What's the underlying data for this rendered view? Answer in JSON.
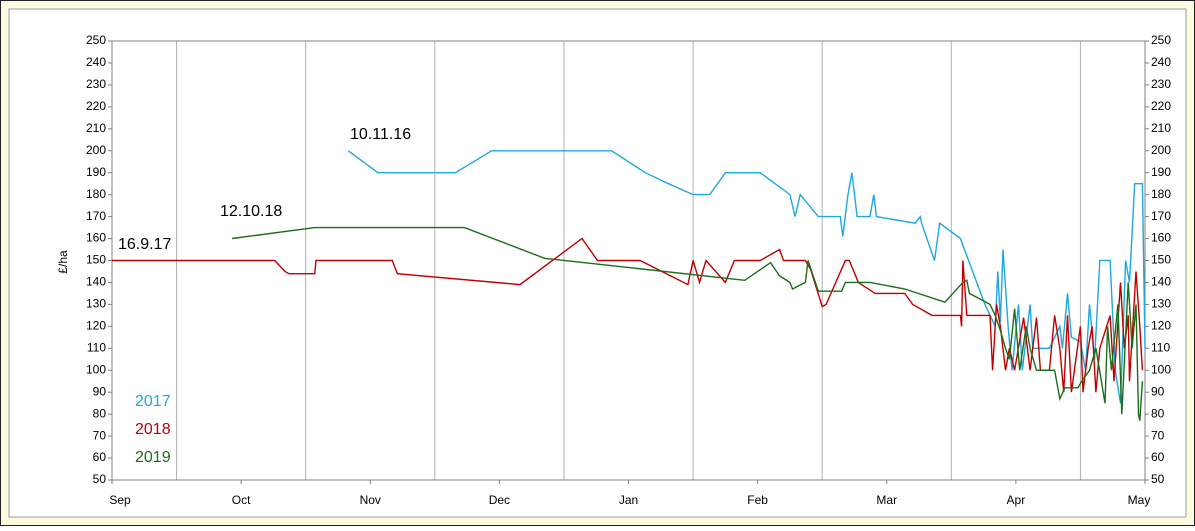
{
  "chart_data": {
    "type": "line",
    "y_label": "£/ha",
    "annotations": [
      "10.11.16",
      "12.10.18",
      "16.9.17"
    ],
    "xlim": [
      0,
      8
    ],
    "xticks": [
      {
        "value": 0,
        "label": "Sep"
      },
      {
        "value": 1,
        "label": "Oct"
      },
      {
        "value": 2,
        "label": "Nov"
      },
      {
        "value": 3,
        "label": "Dec"
      },
      {
        "value": 4,
        "label": "Jan"
      },
      {
        "value": 5,
        "label": "Feb"
      },
      {
        "value": 6,
        "label": "Mar"
      },
      {
        "value": 7,
        "label": "Apr"
      },
      {
        "value": 8,
        "label": "May"
      }
    ],
    "ylim": [
      50,
      250
    ],
    "yticks": [
      50,
      60,
      70,
      80,
      90,
      100,
      110,
      120,
      130,
      140,
      150,
      160,
      170,
      180,
      190,
      200,
      210,
      220,
      230,
      240,
      250
    ],
    "y2lim": [
      50,
      250
    ],
    "y2ticks": [
      50,
      60,
      70,
      80,
      90,
      100,
      110,
      120,
      130,
      140,
      150,
      160,
      170,
      180,
      190,
      200,
      210,
      220,
      230,
      240,
      250
    ],
    "grid": "x",
    "legend": "lower left",
    "series": [
      {
        "name": "2017",
        "color": "#1ea7e0",
        "x": [
          1.83,
          2.06,
          2.66,
          2.94,
          3.87,
          4.13,
          4.31,
          4.5,
          4.63,
          4.75,
          5.02,
          5.25,
          5.29,
          5.33,
          5.47,
          5.64,
          5.66,
          5.7,
          5.73,
          5.77,
          5.87,
          5.9,
          5.92,
          6.22,
          6.26,
          6.27,
          6.37,
          6.41,
          6.57,
          6.76,
          6.84,
          6.86,
          6.88,
          6.9,
          6.94,
          6.97,
          7.02,
          7.05,
          7.11,
          7.13,
          7.26,
          7.34,
          7.36,
          7.4,
          7.43,
          7.5,
          7.54,
          7.57,
          7.61,
          7.65,
          7.73,
          7.77,
          7.81,
          7.85,
          7.88,
          7.92,
          7.98,
          8.0
        ],
        "values": [
          200,
          190,
          190,
          200,
          200,
          190,
          185,
          180,
          180,
          190,
          190,
          180,
          170,
          180,
          170,
          170,
          161,
          180,
          190,
          170,
          170,
          180,
          170,
          167,
          170,
          167,
          150,
          167,
          160,
          130,
          120,
          145,
          122,
          155,
          120,
          100,
          130,
          100,
          130,
          110,
          110,
          120,
          110,
          135,
          115,
          113,
          100,
          130,
          105,
          150,
          150,
          100,
          85,
          150,
          140,
          185,
          185,
          110
        ]
      },
      {
        "name": "2018",
        "color": "#c00000",
        "x": [
          0,
          1.26,
          1.34,
          1.37,
          1.57,
          1.58,
          2.17,
          2.21,
          3.16,
          3.64,
          3.76,
          4.09,
          4.46,
          4.5,
          4.55,
          4.6,
          4.75,
          4.82,
          5.02,
          5.17,
          5.2,
          5.37,
          5.41,
          5.5,
          5.53,
          5.68,
          5.71,
          5.78,
          5.91,
          6.14,
          6.2,
          6.35,
          6.57,
          6.58,
          6.59,
          6.62,
          6.8,
          6.82,
          6.85,
          6.88,
          6.92,
          6.95,
          6.99,
          7.06,
          7.11,
          7.16,
          7.19,
          7.26,
          7.3,
          7.34,
          7.37,
          7.4,
          7.43,
          7.5,
          7.52,
          7.56,
          7.59,
          7.62,
          7.65,
          7.73,
          7.76,
          7.81,
          7.84,
          7.87,
          7.88,
          7.93,
          7.96,
          7.98
        ],
        "values": [
          150,
          150,
          145,
          144,
          144,
          150,
          150,
          144,
          139,
          160,
          150,
          150,
          139,
          150,
          140,
          150,
          140,
          150,
          150,
          155,
          150,
          150,
          146,
          129,
          130,
          150,
          150,
          140,
          135,
          135,
          130,
          125,
          125,
          120,
          150,
          125,
          125,
          100,
          130,
          120,
          100,
          110,
          100,
          124,
          100,
          124,
          100,
          100,
          125,
          110,
          90,
          125,
          90,
          120,
          90,
          110,
          120,
          90,
          110,
          125,
          95,
          140,
          110,
          125,
          95,
          145,
          120,
          100
        ]
      },
      {
        "name": "2019",
        "color": "#1a6e1a",
        "x": [
          0.93,
          1.57,
          2.73,
          3.35,
          4.9,
          5.1,
          5.17,
          5.25,
          5.27,
          5.37,
          5.39,
          5.47,
          5.65,
          5.68,
          5.87,
          6.14,
          6.45,
          6.59,
          6.62,
          6.64,
          6.8,
          6.84,
          6.88,
          6.92,
          6.95,
          6.99,
          7.03,
          7.08,
          7.11,
          7.16,
          7.3,
          7.34,
          7.38,
          7.48,
          7.51,
          7.57,
          7.62,
          7.69,
          7.71,
          7.74,
          7.79,
          7.82,
          7.87,
          7.9,
          7.93,
          7.95,
          7.96,
          7.98
        ],
        "values": [
          160,
          165,
          165,
          151,
          141,
          149,
          143,
          140,
          137,
          140,
          150,
          136,
          136,
          140,
          140,
          137,
          131,
          140,
          141,
          135,
          130,
          125,
          118,
          110,
          105,
          128,
          100,
          120,
          110,
          100,
          100,
          87,
          92,
          92,
          95,
          100,
          110,
          85,
          120,
          100,
          130,
          80,
          140,
          110,
          130,
          80,
          77,
          95
        ]
      }
    ]
  }
}
